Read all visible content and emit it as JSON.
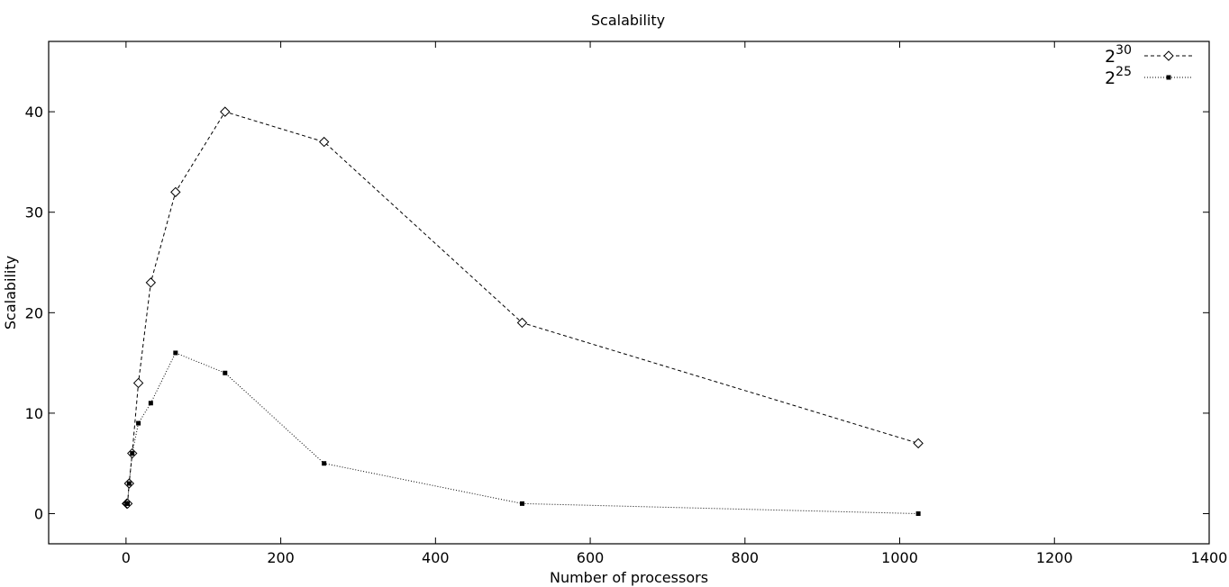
{
  "chart_data": {
    "type": "line",
    "title": "Scalability",
    "xlabel": "Number of processors",
    "ylabel": "Scalability",
    "xlim": [
      -100,
      1400
    ],
    "ylim": [
      -3,
      47
    ],
    "xticks": [
      0,
      200,
      400,
      600,
      800,
      1000,
      1200,
      1400
    ],
    "yticks": [
      0,
      10,
      20,
      30,
      40
    ],
    "xtick_labels": [
      "0",
      "200",
      "400",
      "600",
      "800",
      "1000",
      "1200",
      "1400"
    ],
    "ytick_labels": [
      "0",
      "10",
      "20",
      "30",
      "40"
    ],
    "grid": false,
    "legend_position": "top-right",
    "series": [
      {
        "name_base": "2",
        "name_exp": "30",
        "line_style": "dashed",
        "marker": "diamond",
        "x": [
          1,
          2,
          4,
          8,
          16,
          32,
          64,
          128,
          256,
          512,
          1024
        ],
        "y": [
          1,
          1,
          3,
          6,
          13,
          23,
          32,
          40,
          37,
          19,
          7
        ]
      },
      {
        "name_base": "2",
        "name_exp": "25",
        "line_style": "dotted",
        "marker": "square",
        "x": [
          1,
          2,
          4,
          8,
          16,
          32,
          64,
          128,
          256,
          512,
          1024
        ],
        "y": [
          1,
          1,
          3,
          6,
          9,
          11,
          16,
          14,
          5,
          1,
          0
        ]
      }
    ]
  }
}
